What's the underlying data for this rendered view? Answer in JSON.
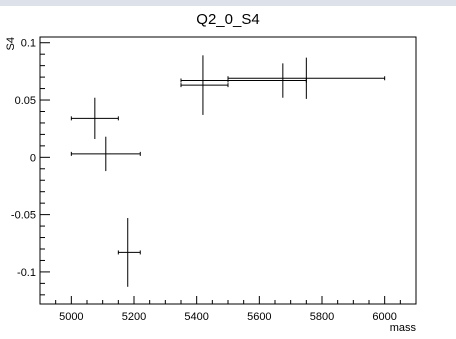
{
  "chart_data": {
    "type": "scatter",
    "title": "Q2_0_S4",
    "xlabel": "mass",
    "ylabel": "S4",
    "xlim": [
      4900,
      6100
    ],
    "ylim": [
      -0.128,
      0.105
    ],
    "grid": false,
    "legend": "none",
    "x_ticks": [
      5000,
      5200,
      5400,
      5600,
      5800,
      6000
    ],
    "y_ticks": [
      -0.1,
      -0.05,
      0,
      0.05,
      0.1
    ],
    "x_tick_labels": [
      "5000",
      "5200",
      "5400",
      "5600",
      "5800",
      "6000"
    ],
    "y_tick_labels": [
      "-0.1",
      "-0.05",
      "0",
      "0.05",
      "0.1"
    ],
    "series": [
      {
        "points": [
          {
            "x": 5075,
            "y": 0.034,
            "x_low": 5000,
            "x_high": 5150,
            "y_err": 0.018
          },
          {
            "x": 5110,
            "y": 0.003,
            "x_low": 5000,
            "x_high": 5220,
            "y_err": 0.015
          },
          {
            "x": 5180,
            "y": -0.083,
            "x_low": 5150,
            "x_high": 5220,
            "y_err": 0.03
          },
          {
            "x": 5420,
            "y": 0.063,
            "x_low": 5350,
            "x_high": 5500,
            "y_err": 0.026
          },
          {
            "x": 5420,
            "y": 0.067,
            "x_low": 5350,
            "x_high": 5500,
            "y_err": 0.0
          },
          {
            "x": 5675,
            "y": 0.067,
            "x_low": 5500,
            "x_high": 5750,
            "y_err": 0.015
          },
          {
            "x": 5750,
            "y": 0.069,
            "x_low": 5500,
            "x_high": 6000,
            "y_err": 0.018
          }
        ]
      }
    ]
  }
}
